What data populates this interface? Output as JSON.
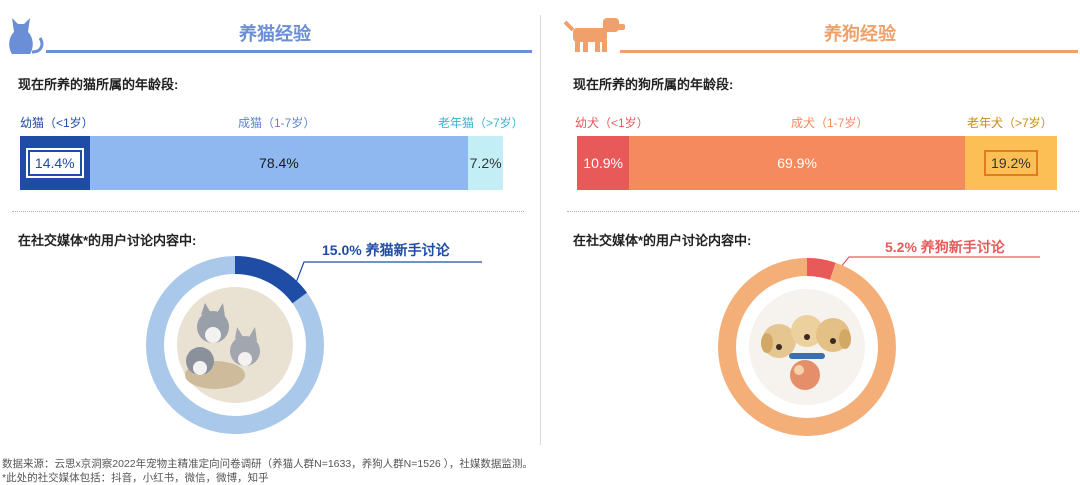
{
  "cat": {
    "title": "养猫经验",
    "age_question": "现在所养的猫所属的年龄段:",
    "social_question": "在社交媒体*的用户讨论内容中:",
    "callout": "15.0% 养猫新手讨论",
    "colors": {
      "accent": "#6b8fd6",
      "young": "#1f4da6",
      "adult": "#8fb8f0",
      "senior": "#c4eef5",
      "donut_ring": "#a9c8ea",
      "donut_slice": "#1f4da6"
    }
  },
  "dog": {
    "title": "养狗经验",
    "age_question": "现在所养的狗所属的年龄段:",
    "social_question": "在社交媒体*的用户讨论内容中:",
    "callout": "5.2% 养狗新手讨论",
    "colors": {
      "accent": "#f0a06a",
      "young": "#e8595a",
      "adult": "#f58a5e",
      "senior": "#fbbf55",
      "donut_ring": "#f4ae78",
      "donut_slice": "#e8595a"
    }
  },
  "chart_data": [
    {
      "type": "bar",
      "title": "现在所养的猫所属的年龄段:",
      "categories": [
        "幼猫（<1岁）",
        "成猫（1-7岁）",
        "老年猫（>7岁）"
      ],
      "values": [
        14.4,
        78.4,
        7.2
      ],
      "value_labels": [
        "14.4%",
        "78.4%",
        "7.2%"
      ]
    },
    {
      "type": "bar",
      "title": "现在所养的狗所属的年龄段:",
      "categories": [
        "幼犬（<1岁）",
        "成犬（1-7岁）",
        "老年犬（>7岁）"
      ],
      "values": [
        10.9,
        69.9,
        19.2
      ],
      "value_labels": [
        "10.9%",
        "69.9%",
        "19.2%"
      ]
    },
    {
      "type": "pie",
      "title": "在社交媒体*的用户讨论内容中:",
      "categories": [
        "养猫新手讨论"
      ],
      "values": [
        15.0
      ]
    },
    {
      "type": "pie",
      "title": "在社交媒体*的用户讨论内容中:",
      "categories": [
        "养狗新手讨论"
      ],
      "values": [
        5.2
      ]
    }
  ],
  "footnote": {
    "line1": "数据来源：云思x京洞察2022年宠物主精准定向问卷调研（养猫人群N=1633，养狗人群N=1526 ），社媒数据监测。",
    "line2": "*此处的社交媒体包括：抖音，小红书，微信，微博，知乎"
  }
}
